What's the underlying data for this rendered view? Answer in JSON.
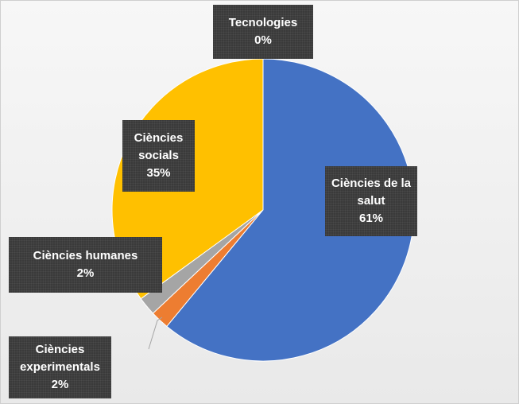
{
  "chart_data": {
    "type": "pie",
    "categories": [
      "Ciències de la salut",
      "Ciències experimentals",
      "Ciències humanes",
      "Ciències socials",
      "Tecnologies"
    ],
    "values": [
      61,
      2,
      2,
      35,
      0
    ],
    "value_labels": [
      "61%",
      "2%",
      "2%",
      "35%",
      "0%"
    ],
    "colors": [
      "#4472c4",
      "#ed7d31",
      "#a5a5a5",
      "#ffc000",
      "#5b9bd5"
    ]
  }
}
